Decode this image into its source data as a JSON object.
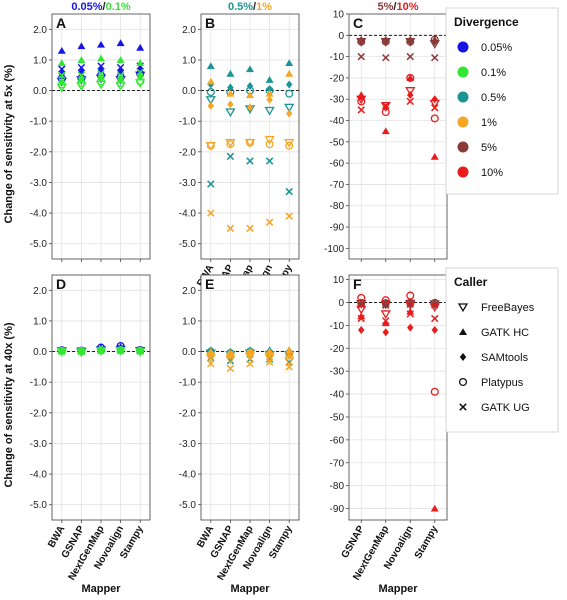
{
  "figure": {
    "y_title_top": "Change of sensitivity at 5x (%)",
    "y_title_bottom": "Change of sensitivity at 40x (%)",
    "x_title": "Mapper"
  },
  "legend": {
    "divergence": {
      "title": "Divergence",
      "items": [
        {
          "label": "0.05%",
          "color": "#1515e6"
        },
        {
          "label": "0.1%",
          "color": "#33e633"
        },
        {
          "label": "0.5%",
          "color": "#1a9494"
        },
        {
          "label": "1%",
          "color": "#f5a623"
        },
        {
          "label": "5%",
          "color": "#8b3a3a"
        },
        {
          "label": "10%",
          "color": "#e81c1c"
        }
      ]
    },
    "caller": {
      "title": "Caller",
      "items": [
        {
          "label": "FreeBayes",
          "shape": "tri-down"
        },
        {
          "label": "GATK HC",
          "shape": "tri-up"
        },
        {
          "label": "SAMtools",
          "shape": "diamond"
        },
        {
          "label": "Platypus",
          "shape": "circle"
        },
        {
          "label": "GATK UG",
          "shape": "cross"
        }
      ]
    }
  },
  "chart_data": [
    {
      "panel": "A",
      "type": "scatter",
      "coverage": "5x",
      "title_parts": [
        {
          "text": "0.05%",
          "color": "#1515e6"
        },
        {
          "text": "/",
          "color": "#222222"
        },
        {
          "text": "0.1%",
          "color": "#33e633"
        }
      ],
      "ylim": [
        -5.5,
        2.5
      ],
      "yticks": [
        2,
        1,
        0,
        -1,
        -2,
        -3,
        -4,
        -5
      ],
      "yticklabels": [
        "2.0",
        "1.0",
        "0.0",
        "-1.0",
        "-2.0",
        "-3.0",
        "-4.0",
        "-5.0"
      ],
      "categories": [
        "BWA",
        "GSNAP",
        "NextGenMap",
        "Novoalign",
        "Stampy"
      ],
      "show_xlabels": false,
      "series": [
        {
          "divergence": "0.05%",
          "caller": "FreeBayes",
          "values": [
            0.3,
            0.35,
            0.4,
            0.35,
            0.5
          ]
        },
        {
          "divergence": "0.05%",
          "caller": "GATK HC",
          "values": [
            1.3,
            1.45,
            1.5,
            1.55,
            1.4
          ]
        },
        {
          "divergence": "0.05%",
          "caller": "SAMtools",
          "values": [
            0.55,
            0.6,
            0.65,
            0.6,
            0.7
          ]
        },
        {
          "divergence": "0.05%",
          "caller": "Platypus",
          "values": [
            0.4,
            0.4,
            0.5,
            0.45,
            0.55
          ]
        },
        {
          "divergence": "0.05%",
          "caller": "GATK UG",
          "values": [
            0.7,
            0.75,
            0.8,
            0.75,
            0.8
          ]
        },
        {
          "divergence": "0.1%",
          "caller": "FreeBayes",
          "values": [
            0.1,
            0.15,
            0.2,
            0.15,
            0.25
          ]
        },
        {
          "divergence": "0.1%",
          "caller": "GATK HC",
          "values": [
            0.9,
            1.0,
            1.05,
            1.0,
            0.9
          ]
        },
        {
          "divergence": "0.1%",
          "caller": "SAMtools",
          "values": [
            0.3,
            0.35,
            0.4,
            0.35,
            0.45
          ]
        },
        {
          "divergence": "0.1%",
          "caller": "Platypus",
          "values": [
            0.2,
            0.25,
            0.3,
            0.25,
            0.3
          ]
        },
        {
          "divergence": "0.1%",
          "caller": "GATK UG",
          "values": [
            0.5,
            0.5,
            0.55,
            0.5,
            0.6
          ]
        }
      ]
    },
    {
      "panel": "B",
      "type": "scatter",
      "coverage": "5x",
      "title_parts": [
        {
          "text": "0.5%",
          "color": "#1a9494"
        },
        {
          "text": "/",
          "color": "#222222"
        },
        {
          "text": "1%",
          "color": "#f5a623"
        }
      ],
      "ylim": [
        -5.5,
        2.5
      ],
      "yticks": [
        2,
        1,
        0,
        -1,
        -2,
        -3,
        -4,
        -5
      ],
      "yticklabels": [
        "2.0",
        "1.0",
        "0.0",
        "-1.0",
        "-2.0",
        "-3.0",
        "-4.0",
        "-5.0"
      ],
      "categories": [
        "BWA",
        "GSNAP",
        "NextGenMap",
        "Novoalign",
        "Stampy"
      ],
      "show_xlabels": true,
      "series": [
        {
          "divergence": "0.5%",
          "caller": "FreeBayes",
          "values": [
            -0.3,
            -0.7,
            -0.6,
            -0.65,
            -0.55
          ]
        },
        {
          "divergence": "0.5%",
          "caller": "GATK HC",
          "values": [
            0.8,
            0.55,
            0.7,
            0.35,
            0.9
          ]
        },
        {
          "divergence": "0.5%",
          "caller": "SAMtools",
          "values": [
            0.2,
            0.1,
            0.15,
            0.05,
            0.2
          ]
        },
        {
          "divergence": "0.5%",
          "caller": "Platypus",
          "values": [
            -0.05,
            -0.05,
            0.0,
            0.0,
            -0.1
          ]
        },
        {
          "divergence": "0.5%",
          "caller": "GATK UG",
          "values": [
            -3.05,
            -2.15,
            -2.3,
            -2.3,
            -3.3
          ]
        },
        {
          "divergence": "1%",
          "caller": "FreeBayes",
          "values": [
            -1.8,
            -1.7,
            -1.7,
            -1.6,
            -1.7
          ]
        },
        {
          "divergence": "1%",
          "caller": "GATK HC",
          "values": [
            0.3,
            -0.1,
            -0.15,
            -0.1,
            0.55
          ]
        },
        {
          "divergence": "1%",
          "caller": "SAMtools",
          "values": [
            -0.5,
            -0.45,
            -0.55,
            -0.3,
            -0.75
          ]
        },
        {
          "divergence": "1%",
          "caller": "Platypus",
          "values": [
            -1.8,
            -1.75,
            -1.7,
            -1.75,
            -1.8
          ]
        },
        {
          "divergence": "1%",
          "caller": "GATK UG",
          "values": [
            -4.0,
            -4.5,
            -4.5,
            -4.3,
            -4.1
          ]
        }
      ]
    },
    {
      "panel": "C",
      "type": "scatter",
      "coverage": "5x",
      "title_parts": [
        {
          "text": "5%",
          "color": "#8b3a3a"
        },
        {
          "text": "/",
          "color": "#222222"
        },
        {
          "text": "10%",
          "color": "#e81c1c"
        }
      ],
      "ylim": [
        -105,
        10
      ],
      "yticks": [
        10,
        0,
        -10,
        -20,
        -30,
        -40,
        -50,
        -60,
        -70,
        -80,
        -90,
        -100
      ],
      "yticklabels": [
        "10",
        "0",
        "-10",
        "-20",
        "-30",
        "-40",
        "-50",
        "-60",
        "-70",
        "-80",
        "-90",
        "-100"
      ],
      "categories": [
        "GSNAP",
        "NextGenMap",
        "Novoalign",
        "Stampy"
      ],
      "show_xlabels": false,
      "series": [
        {
          "divergence": "5%",
          "caller": "FreeBayes",
          "values": [
            -3,
            -3,
            -3,
            -4
          ]
        },
        {
          "divergence": "5%",
          "caller": "GATK HC",
          "values": [
            -2,
            -2,
            -2,
            -2
          ]
        },
        {
          "divergence": "5%",
          "caller": "SAMtools",
          "values": [
            -2.5,
            -2.5,
            -2.5,
            -3
          ]
        },
        {
          "divergence": "5%",
          "caller": "Platypus",
          "values": [
            -3,
            -3,
            -3,
            -2
          ]
        },
        {
          "divergence": "5%",
          "caller": "GATK UG",
          "values": [
            -10,
            -10.5,
            -10,
            -10.5
          ]
        },
        {
          "divergence": "10%",
          "caller": "FreeBayes",
          "values": [
            -30,
            -33,
            -26,
            -32
          ]
        },
        {
          "divergence": "10%",
          "caller": "GATK HC",
          "values": [
            -28,
            -45,
            -20,
            -57
          ]
        },
        {
          "divergence": "10%",
          "caller": "SAMtools",
          "values": [
            -29,
            -34,
            -28,
            -30
          ]
        },
        {
          "divergence": "10%",
          "caller": "Platypus",
          "values": [
            -31,
            -36,
            -20,
            -39
          ]
        },
        {
          "divergence": "10%",
          "caller": "GATK UG",
          "values": [
            -35,
            -33,
            -31,
            -34
          ]
        }
      ]
    },
    {
      "panel": "D",
      "type": "scatter",
      "coverage": "40x",
      "title_parts": [],
      "ylim": [
        -5.5,
        2.5
      ],
      "yticks": [
        2,
        1,
        0,
        -1,
        -2,
        -3,
        -4,
        -5
      ],
      "yticklabels": [
        "2.0",
        "1.0",
        "0.0",
        "-1.0",
        "-2.0",
        "-3.0",
        "-4.0",
        "-5.0"
      ],
      "categories": [
        "BWA",
        "GSNAP",
        "NextGenMap",
        "Novoalign",
        "Stampy"
      ],
      "show_xlabels": true,
      "series": [
        {
          "divergence": "0.05%",
          "caller": "FreeBayes",
          "values": [
            0.02,
            0.01,
            0.05,
            0.05,
            0.03
          ]
        },
        {
          "divergence": "0.05%",
          "caller": "GATK HC",
          "values": [
            0.05,
            0.04,
            0.12,
            0.15,
            0.05
          ]
        },
        {
          "divergence": "0.05%",
          "caller": "SAMtools",
          "values": [
            0.03,
            0.02,
            0.1,
            0.12,
            0.04
          ]
        },
        {
          "divergence": "0.05%",
          "caller": "Platypus",
          "values": [
            0.04,
            0.03,
            0.13,
            0.18,
            0.05
          ]
        },
        {
          "divergence": "0.05%",
          "caller": "GATK UG",
          "values": [
            0.02,
            0.02,
            0.07,
            0.1,
            0.03
          ]
        },
        {
          "divergence": "0.1%",
          "caller": "FreeBayes",
          "values": [
            0.0,
            -0.02,
            0.02,
            0.03,
            0.0
          ]
        },
        {
          "divergence": "0.1%",
          "caller": "GATK HC",
          "values": [
            0.03,
            0.02,
            0.06,
            0.05,
            0.04
          ]
        },
        {
          "divergence": "0.1%",
          "caller": "SAMtools",
          "values": [
            0.02,
            0.01,
            0.04,
            0.05,
            0.02
          ]
        },
        {
          "divergence": "0.1%",
          "caller": "Platypus",
          "values": [
            0.02,
            0.02,
            0.05,
            0.05,
            0.03
          ]
        },
        {
          "divergence": "0.1%",
          "caller": "GATK UG",
          "values": [
            0.01,
            0.0,
            0.03,
            0.02,
            0.01
          ]
        }
      ]
    },
    {
      "panel": "E",
      "type": "scatter",
      "coverage": "40x",
      "title_parts": [],
      "ylim": [
        -5.5,
        2.5
      ],
      "yticks": [
        2,
        1,
        0,
        -1,
        -2,
        -3,
        -4,
        -5
      ],
      "yticklabels": [
        "2.0",
        "1.0",
        "0.0",
        "-1.0",
        "-2.0",
        "-3.0",
        "-4.0",
        "-5.0"
      ],
      "categories": [
        "BWA",
        "GSNAP",
        "NextGenMap",
        "Novoalign",
        "Stampy"
      ],
      "show_xlabels": true,
      "series": [
        {
          "divergence": "0.5%",
          "caller": "FreeBayes",
          "values": [
            -0.05,
            -0.1,
            -0.05,
            -0.1,
            -0.1
          ]
        },
        {
          "divergence": "0.5%",
          "caller": "GATK HC",
          "values": [
            0.05,
            0.0,
            0.05,
            0.05,
            0.05
          ]
        },
        {
          "divergence": "0.5%",
          "caller": "SAMtools",
          "values": [
            0.0,
            -0.05,
            0.0,
            0.0,
            0.0
          ]
        },
        {
          "divergence": "0.5%",
          "caller": "Platypus",
          "values": [
            0.0,
            -0.05,
            0.0,
            -0.05,
            -0.05
          ]
        },
        {
          "divergence": "0.5%",
          "caller": "GATK UG",
          "values": [
            -0.2,
            -0.3,
            -0.25,
            -0.25,
            -0.35
          ]
        },
        {
          "divergence": "1%",
          "caller": "FreeBayes",
          "values": [
            -0.2,
            -0.25,
            -0.15,
            -0.2,
            -0.3
          ]
        },
        {
          "divergence": "1%",
          "caller": "GATK HC",
          "values": [
            0.0,
            -0.05,
            0.0,
            0.0,
            0.05
          ]
        },
        {
          "divergence": "1%",
          "caller": "SAMtools",
          "values": [
            -0.1,
            -0.15,
            -0.1,
            -0.1,
            -0.15
          ]
        },
        {
          "divergence": "1%",
          "caller": "Platypus",
          "values": [
            -0.1,
            -0.1,
            -0.05,
            -0.1,
            -0.1
          ]
        },
        {
          "divergence": "1%",
          "caller": "GATK UG",
          "values": [
            -0.4,
            -0.55,
            -0.4,
            -0.35,
            -0.5
          ]
        }
      ]
    },
    {
      "panel": "F",
      "type": "scatter",
      "coverage": "40x",
      "title_parts": [],
      "ylim": [
        -95,
        12
      ],
      "yticks": [
        10,
        0,
        -10,
        -20,
        -30,
        -40,
        -50,
        -60,
        -70,
        -80,
        -90
      ],
      "yticklabels": [
        "10",
        "0",
        "-10",
        "-20",
        "-30",
        "-40",
        "-50",
        "-60",
        "-70",
        "-80",
        "-90"
      ],
      "categories": [
        "GSNAP",
        "NextGenMap",
        "Novoalign",
        "Stampy"
      ],
      "show_xlabels": true,
      "series": [
        {
          "divergence": "5%",
          "caller": "FreeBayes",
          "values": [
            -0.5,
            -0.8,
            -0.4,
            -0.6
          ]
        },
        {
          "divergence": "5%",
          "caller": "GATK HC",
          "values": [
            -0.3,
            -0.5,
            -0.2,
            -0.4
          ]
        },
        {
          "divergence": "5%",
          "caller": "SAMtools",
          "values": [
            -0.8,
            -1.0,
            -0.6,
            -0.9
          ]
        },
        {
          "divergence": "5%",
          "caller": "Platypus",
          "values": [
            -0.2,
            -0.3,
            -0.1,
            -0.2
          ]
        },
        {
          "divergence": "5%",
          "caller": "GATK UG",
          "values": [
            -1.0,
            -1.2,
            -0.8,
            -1.1
          ]
        },
        {
          "divergence": "10%",
          "caller": "FreeBayes",
          "values": [
            -3,
            -5,
            -1,
            -2
          ]
        },
        {
          "divergence": "10%",
          "caller": "GATK HC",
          "values": [
            -6,
            -9,
            -4,
            -90
          ]
        },
        {
          "divergence": "10%",
          "caller": "SAMtools",
          "values": [
            -12,
            -13,
            -11,
            -12
          ]
        },
        {
          "divergence": "10%",
          "caller": "Platypus",
          "values": [
            2,
            1,
            3,
            -39
          ]
        },
        {
          "divergence": "10%",
          "caller": "GATK UG",
          "values": [
            -7,
            -8,
            -5,
            -7
          ]
        }
      ]
    }
  ]
}
